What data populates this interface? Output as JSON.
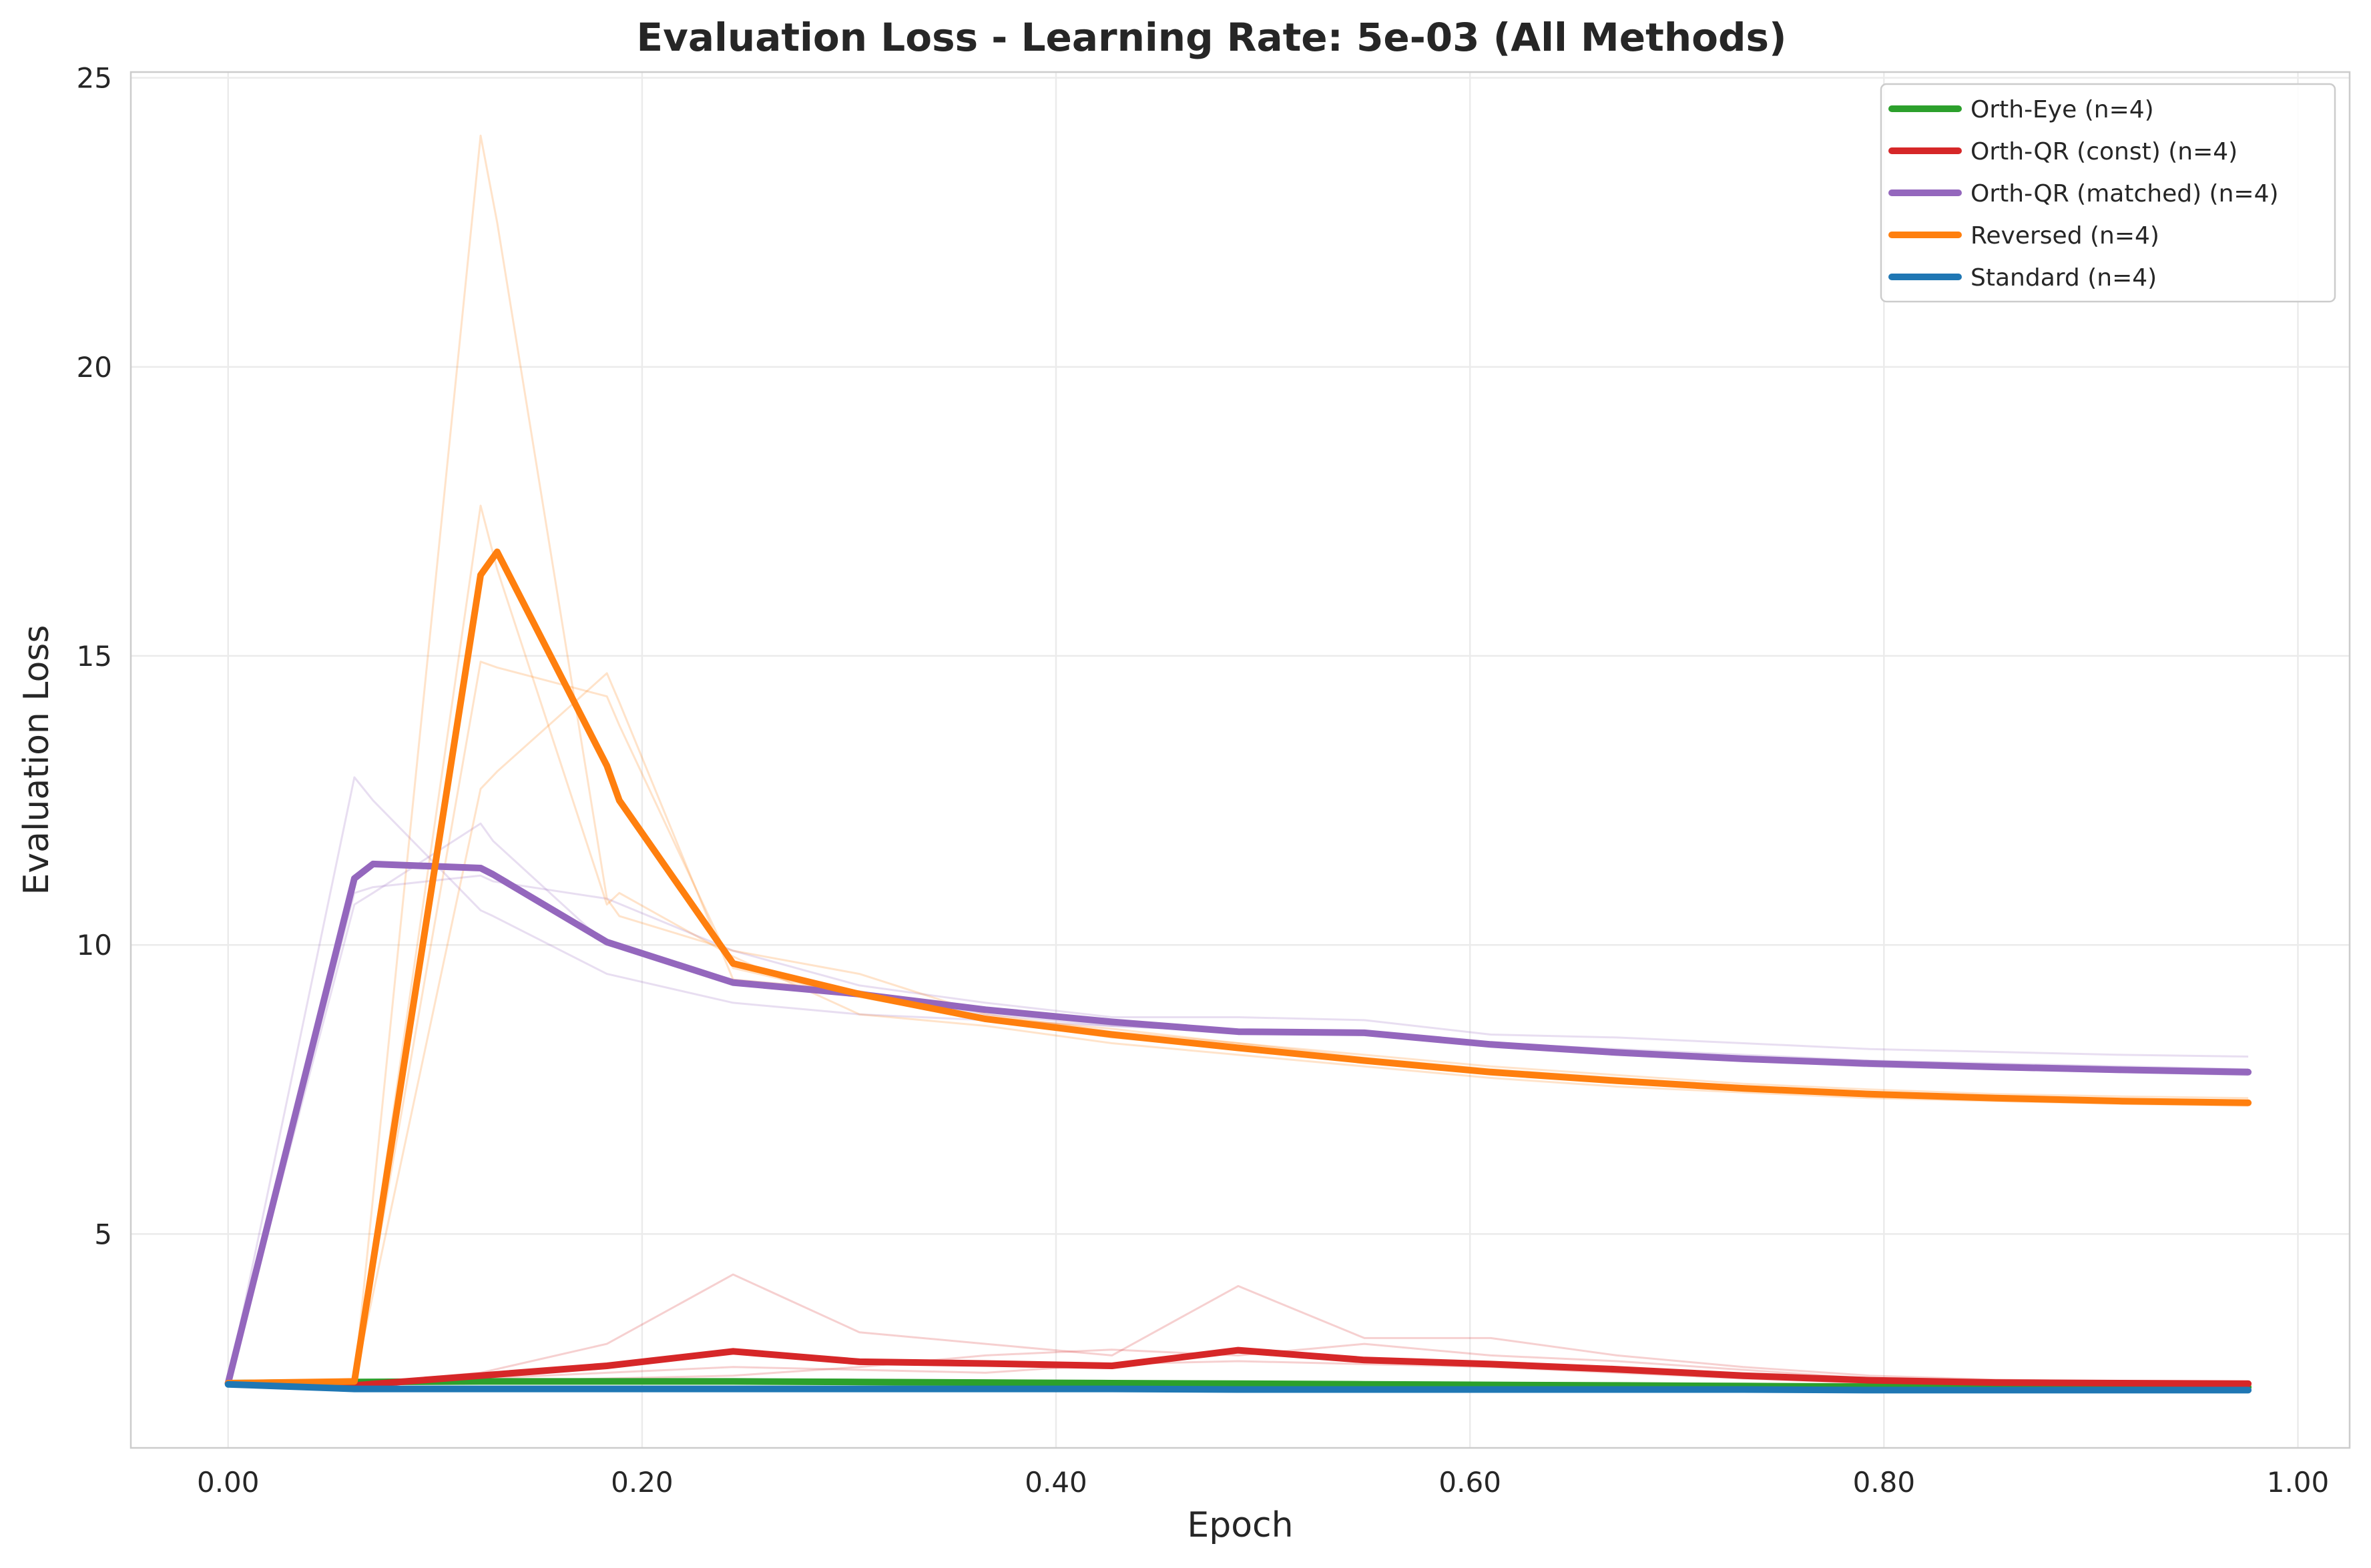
{
  "chart_data": {
    "type": "line",
    "title": "Evaluation Loss - Learning Rate: 5e-03 (All Methods)",
    "xlabel": "Epoch",
    "ylabel": "Evaluation Loss",
    "xlim": [
      -0.047,
      1.025
    ],
    "ylim": [
      1.3,
      25.1
    ],
    "xticks": [
      0.0,
      0.2,
      0.4,
      0.6,
      0.8,
      1.0
    ],
    "xtick_labels": [
      "0.00",
      "0.20",
      "0.40",
      "0.60",
      "0.80",
      "1.00"
    ],
    "yticks": [
      5,
      10,
      15,
      20,
      25
    ],
    "ytick_labels": [
      "5",
      "10",
      "15",
      "20",
      "25"
    ],
    "grid": true,
    "legend_position": "top-right",
    "series": [
      {
        "name": "Orth-Eye (n=4)",
        "color": "#2ca02c",
        "x": [
          0.0,
          0.061,
          0.122,
          0.183,
          0.244,
          0.305,
          0.366,
          0.427,
          0.488,
          0.549,
          0.61,
          0.671,
          0.732,
          0.793,
          0.854,
          0.915,
          0.976
        ],
        "values": [
          2.42,
          2.44,
          2.45,
          2.45,
          2.45,
          2.44,
          2.43,
          2.42,
          2.41,
          2.4,
          2.39,
          2.38,
          2.37,
          2.36,
          2.36,
          2.35,
          2.35
        ],
        "runs": [
          [
            2.42,
            2.45,
            2.47,
            2.47,
            2.46,
            2.45,
            2.44,
            2.43,
            2.42,
            2.41,
            2.4,
            2.39,
            2.38,
            2.37,
            2.37,
            2.36,
            2.36
          ],
          [
            2.42,
            2.43,
            2.44,
            2.44,
            2.44,
            2.43,
            2.42,
            2.41,
            2.4,
            2.39,
            2.38,
            2.37,
            2.36,
            2.35,
            2.35,
            2.34,
            2.34
          ]
        ]
      },
      {
        "name": "Orth-QR (const) (n=4)",
        "color": "#d62728",
        "x": [
          0.0,
          0.061,
          0.122,
          0.183,
          0.244,
          0.305,
          0.366,
          0.427,
          0.488,
          0.549,
          0.61,
          0.671,
          0.732,
          0.793,
          0.854,
          0.915,
          0.976
        ],
        "values": [
          2.42,
          2.38,
          2.55,
          2.72,
          2.97,
          2.79,
          2.76,
          2.72,
          2.99,
          2.82,
          2.75,
          2.66,
          2.55,
          2.47,
          2.43,
          2.42,
          2.41
        ],
        "runs": [
          [
            2.42,
            2.4,
            2.6,
            3.1,
            4.3,
            3.3,
            3.1,
            2.9,
            4.1,
            3.2,
            3.2,
            2.9,
            2.7,
            2.55,
            2.48,
            2.45,
            2.44
          ],
          [
            2.42,
            2.39,
            2.45,
            2.5,
            2.55,
            2.7,
            2.9,
            3.0,
            2.9,
            3.1,
            2.9,
            2.8,
            2.65,
            2.5,
            2.45,
            2.43,
            2.42
          ],
          [
            2.42,
            2.37,
            2.5,
            2.6,
            2.7,
            2.65,
            2.6,
            2.75,
            2.8,
            2.75,
            2.7,
            2.6,
            2.5,
            2.42,
            2.4,
            2.39,
            2.38
          ]
        ]
      },
      {
        "name": "Orth-QR (matched) (n=4)",
        "color": "#9467bd",
        "x": [
          0.0,
          0.061,
          0.07,
          0.122,
          0.128,
          0.183,
          0.244,
          0.305,
          0.366,
          0.427,
          0.488,
          0.549,
          0.61,
          0.671,
          0.732,
          0.793,
          0.854,
          0.915,
          0.976
        ],
        "values": [
          2.42,
          11.15,
          11.4,
          11.33,
          11.22,
          10.05,
          9.35,
          9.15,
          8.88,
          8.67,
          8.5,
          8.48,
          8.28,
          8.14,
          8.03,
          7.95,
          7.89,
          7.84,
          7.8
        ],
        "runs": [
          [
            2.42,
            12.9,
            12.5,
            10.6,
            10.5,
            9.5,
            9.0,
            8.8,
            8.7,
            8.6,
            8.5,
            8.5,
            8.3,
            8.2,
            8.1,
            8.0,
            7.95,
            7.9,
            7.85
          ],
          [
            2.42,
            10.7,
            10.9,
            12.1,
            11.8,
            10.0,
            9.4,
            9.2,
            8.8,
            8.6,
            8.5,
            8.45,
            8.25,
            8.1,
            8.0,
            7.9,
            7.85,
            7.8,
            7.75
          ],
          [
            2.42,
            10.9,
            11.0,
            11.2,
            11.1,
            10.8,
            9.9,
            9.3,
            9.0,
            8.75,
            8.75,
            8.7,
            8.45,
            8.4,
            8.3,
            8.2,
            8.15,
            8.1,
            8.07
          ]
        ]
      },
      {
        "name": "Reversed (n=4)",
        "color": "#ff7f0e",
        "x": [
          0.0,
          0.061,
          0.122,
          0.13,
          0.183,
          0.189,
          0.244,
          0.305,
          0.366,
          0.427,
          0.488,
          0.549,
          0.61,
          0.671,
          0.732,
          0.793,
          0.854,
          0.915,
          0.976
        ],
        "values": [
          2.42,
          2.45,
          16.4,
          16.8,
          13.1,
          12.5,
          9.68,
          9.15,
          8.72,
          8.45,
          8.22,
          8.0,
          7.8,
          7.65,
          7.52,
          7.42,
          7.35,
          7.3,
          7.27
        ],
        "runs": [
          [
            2.42,
            2.45,
            24.0,
            22.5,
            10.8,
            10.5,
            9.9,
            9.5,
            8.8,
            8.5,
            8.3,
            8.1,
            7.9,
            7.75,
            7.6,
            7.5,
            7.42,
            7.38,
            7.35
          ],
          [
            2.42,
            2.45,
            17.6,
            16.5,
            10.7,
            10.9,
            9.8,
            8.8,
            8.6,
            8.3,
            8.1,
            7.9,
            7.7,
            7.55,
            7.45,
            7.35,
            7.3,
            7.25,
            7.22
          ],
          [
            2.42,
            2.45,
            14.9,
            14.8,
            14.3,
            13.8,
            9.6,
            9.1,
            8.7,
            8.4,
            8.2,
            8.0,
            7.8,
            7.65,
            7.5,
            7.4,
            7.33,
            7.28,
            7.25
          ],
          [
            2.42,
            2.45,
            12.7,
            13.0,
            14.7,
            14.2,
            9.4,
            9.2,
            8.75,
            8.55,
            8.3,
            8.05,
            7.85,
            7.7,
            7.55,
            7.45,
            7.37,
            7.3,
            7.28
          ]
        ]
      },
      {
        "name": "Standard (n=4)",
        "color": "#1f77b4",
        "x": [
          0.0,
          0.061,
          0.122,
          0.183,
          0.244,
          0.305,
          0.366,
          0.427,
          0.488,
          0.549,
          0.61,
          0.671,
          0.732,
          0.793,
          0.854,
          0.915,
          0.976
        ],
        "values": [
          2.4,
          2.32,
          2.32,
          2.32,
          2.32,
          2.32,
          2.32,
          2.32,
          2.31,
          2.31,
          2.31,
          2.31,
          2.31,
          2.3,
          2.3,
          2.3,
          2.3
        ],
        "runs": []
      }
    ]
  }
}
